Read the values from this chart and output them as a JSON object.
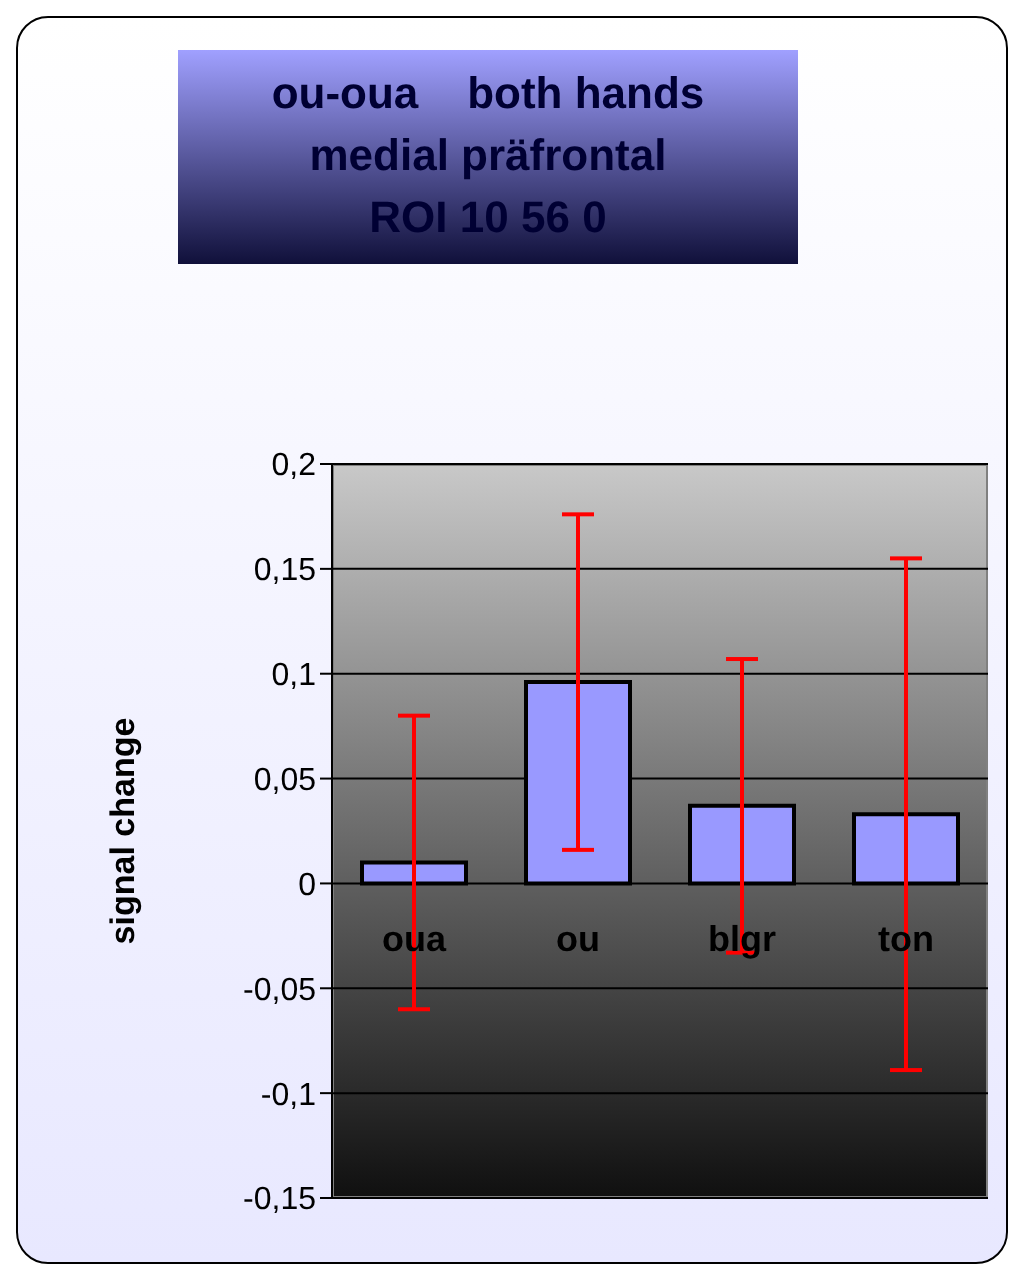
{
  "chart_data": {
    "type": "bar",
    "title": "ou-oua    both hands\nmedial präfrontal\nROI 10 56 0",
    "ylabel": "signal change",
    "categories": [
      "oua",
      "ou",
      "blgr",
      "ton"
    ],
    "values": [
      0.01,
      0.096,
      0.037,
      0.033
    ],
    "errors": [
      0.07,
      0.08,
      0.07,
      0.122
    ],
    "color": "#9999ff",
    "ylim": [
      -0.15,
      0.2
    ],
    "yticks": [
      {
        "value": -0.15,
        "label": "-0,15"
      },
      {
        "value": -0.1,
        "label": "-0,1"
      },
      {
        "value": -0.05,
        "label": "-0,05"
      },
      {
        "value": 0,
        "label": "0"
      },
      {
        "value": 0.05,
        "label": "0,05"
      },
      {
        "value": 0.1,
        "label": "0,1"
      },
      {
        "value": 0.15,
        "label": "0,15"
      },
      {
        "value": 0.2,
        "label": "0,2"
      }
    ],
    "grid": "y",
    "legend": false
  }
}
